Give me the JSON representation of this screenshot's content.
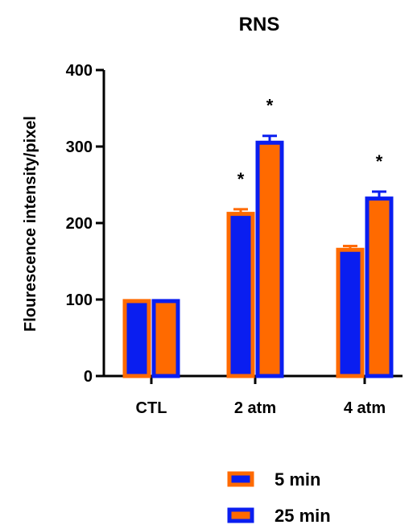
{
  "chart_data": {
    "type": "bar",
    "title": "RNS",
    "ylabel": "Flourescence intensity/pixel",
    "xlabel": "",
    "ylim": [
      0,
      400
    ],
    "yticks": [
      0,
      100,
      200,
      300,
      400
    ],
    "categories": [
      "CTL",
      "2 atm",
      "4 atm"
    ],
    "series": [
      {
        "name": "5 min",
        "fill": "#0a1ef0",
        "border": "#ff6a00",
        "values": [
          98,
          212,
          165
        ],
        "errors": [
          0,
          6,
          5
        ],
        "significance": [
          "",
          "*",
          ""
        ]
      },
      {
        "name": "25 min",
        "fill": "#ff6a00",
        "border": "#0a1ef0",
        "values": [
          98,
          305,
          232
        ],
        "errors": [
          0,
          9,
          9
        ],
        "significance": [
          "",
          "*",
          "*"
        ]
      }
    ],
    "legend_position": "bottom",
    "grid": false
  }
}
